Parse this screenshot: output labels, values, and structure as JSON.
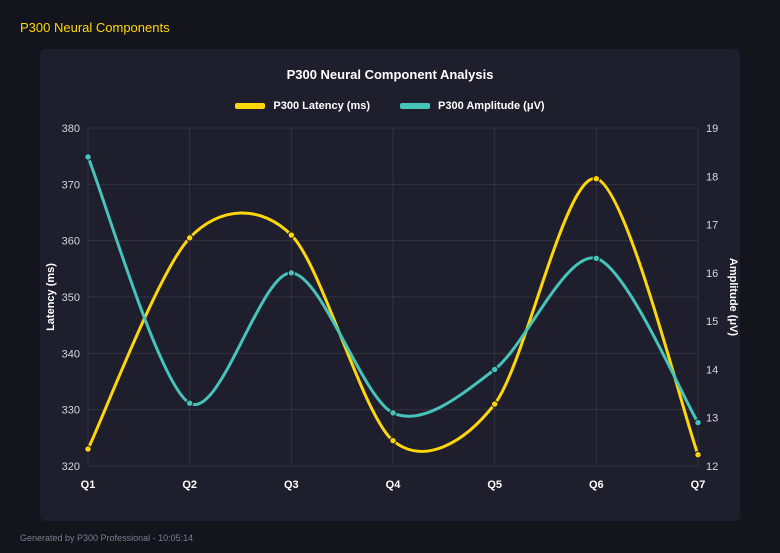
{
  "header": {
    "title": "P300 Neural Components"
  },
  "footer": {
    "text": "Generated by P300 Professional - 10:05:14"
  },
  "chart_data": {
    "type": "line",
    "title": "P300 Neural Component Analysis",
    "categories": [
      "Q1",
      "Q2",
      "Q3",
      "Q4",
      "Q5",
      "Q6",
      "Q7"
    ],
    "series": [
      {
        "name": "P300 Latency (ms)",
        "color": "#ffd60a",
        "axis": "left",
        "values": [
          323,
          360.5,
          361,
          324.5,
          331,
          371,
          322
        ]
      },
      {
        "name": "P300 Amplitude (μV)",
        "color": "#46c3ba",
        "axis": "right",
        "values": [
          18.4,
          13.3,
          16.0,
          13.1,
          14.0,
          16.3,
          12.9
        ]
      }
    ],
    "left_axis": {
      "label": "Latency (ms)",
      "min": 320,
      "max": 380,
      "step": 10
    },
    "right_axis": {
      "label": "Amplitude (μV)",
      "min": 12,
      "max": 19,
      "step": 1
    },
    "grid": true,
    "legend_position": "top",
    "line_tension": 0.4
  },
  "colors": {
    "background": "#14141d",
    "panel": "#1e1e2c",
    "grid": "rgba(255,255,255,0.09)",
    "accent_yellow": "#ffd60a",
    "accent_teal": "#46c3ba"
  }
}
